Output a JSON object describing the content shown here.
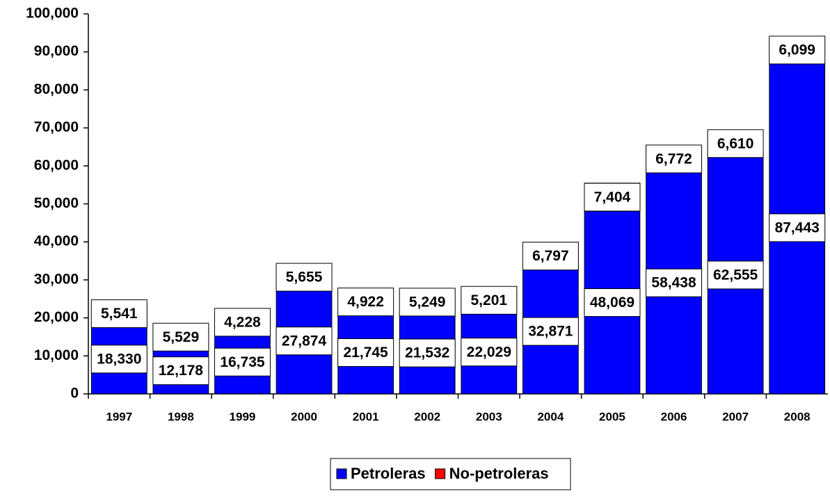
{
  "chart_data": {
    "type": "stacked_bar",
    "categories": [
      "1997",
      "1998",
      "1999",
      "2000",
      "2001",
      "2002",
      "2003",
      "2004",
      "2005",
      "2006",
      "2007",
      "2008"
    ],
    "series": [
      {
        "name": "Petroleras",
        "color": "#0000ff",
        "values": [
          18330,
          12178,
          16735,
          27874,
          21745,
          21532,
          22029,
          32871,
          48069,
          58438,
          62555,
          87443
        ],
        "value_labels": [
          "18,330",
          "12,178",
          "16,735",
          "27,874",
          "21,745",
          "21,532",
          "22,029",
          "32,871",
          "48,069",
          "58,438",
          "62,555",
          "87,443"
        ]
      },
      {
        "name": "No-petroleras",
        "color": "#ff0000",
        "values": [
          5541,
          5529,
          4228,
          5655,
          4922,
          5249,
          5201,
          6797,
          7404,
          6772,
          6610,
          6099
        ],
        "value_labels": [
          "5,541",
          "5,529",
          "4,228",
          "5,655",
          "4,922",
          "5,249",
          "5,201",
          "6,797",
          "7,404",
          "6,772",
          "6,610",
          "6,099"
        ]
      }
    ],
    "ylim": [
      0,
      100000
    ],
    "yticks": [
      0,
      {
        "value": 10000,
        "label": "10,000"
      },
      {
        "value": 20000,
        "label": "20,000"
      },
      {
        "value": 30000,
        "label": "30,000"
      },
      {
        "value": 40000,
        "label": "40,000"
      },
      {
        "value": 50000,
        "label": "50,000"
      },
      {
        "value": 60000,
        "label": "60,000"
      },
      {
        "value": 70000,
        "label": "70,000"
      },
      {
        "value": 80000,
        "label": "80,000"
      },
      {
        "value": 90000,
        "label": "90,000"
      },
      {
        "value": 100000,
        "label": "100,000"
      }
    ],
    "legend": "bottom"
  }
}
